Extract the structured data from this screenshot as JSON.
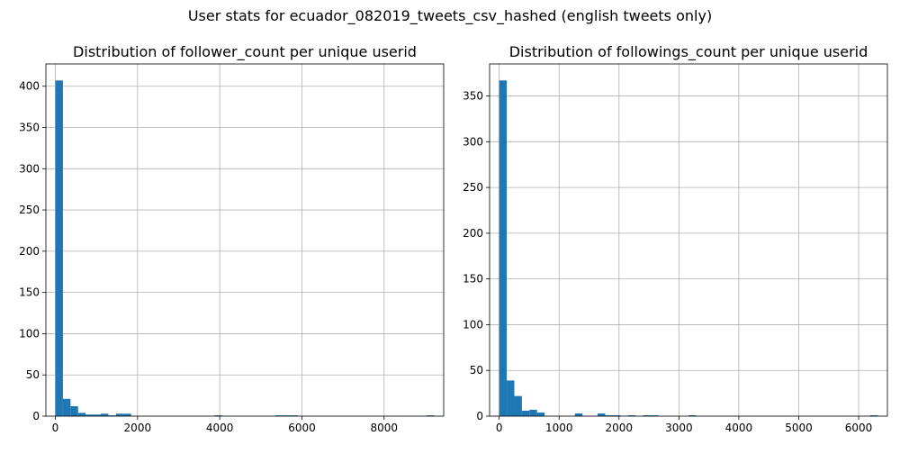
{
  "figure": {
    "suptitle": "User stats for ecuador_082019_tweets_csv_hashed (english tweets only)"
  },
  "colors": {
    "bar": "#1f77b4",
    "grid": "#b0b0b0",
    "axes": "#000000",
    "background": "#ffffff"
  },
  "chart_data": [
    {
      "type": "bar",
      "title": "Distribution of follower_count per unique userid",
      "xlabel": "",
      "ylabel": "",
      "grid": true,
      "xlim": [
        -230,
        9450
      ],
      "ylim": [
        0,
        427
      ],
      "xticks": [
        0,
        2000,
        4000,
        6000,
        8000
      ],
      "yticks": [
        0,
        50,
        100,
        150,
        200,
        250,
        300,
        350,
        400
      ],
      "bin_range": [
        0,
        9220
      ],
      "bins": 50,
      "values": [
        407,
        21,
        12,
        4,
        2,
        2,
        3,
        1,
        3,
        3,
        0,
        0,
        0,
        0,
        0,
        0,
        0,
        0,
        0,
        0,
        0,
        1,
        0,
        0,
        0,
        0,
        0,
        0,
        0,
        1,
        1,
        1,
        0,
        0,
        0,
        0,
        0,
        0,
        0,
        0,
        0,
        0,
        0,
        0,
        0,
        0,
        0,
        0,
        0,
        1
      ]
    },
    {
      "type": "bar",
      "title": "Distribution of followings_count per unique userid",
      "xlabel": "",
      "ylabel": "",
      "grid": true,
      "xlim": [
        -160,
        6480
      ],
      "ylim": [
        0,
        385
      ],
      "xticks": [
        0,
        1000,
        2000,
        3000,
        4000,
        5000,
        6000
      ],
      "yticks": [
        0,
        50,
        100,
        150,
        200,
        250,
        300,
        350
      ],
      "bin_range": [
        0,
        6320
      ],
      "bins": 50,
      "values": [
        367,
        39,
        22,
        6,
        7,
        4,
        0,
        0,
        0,
        0,
        3,
        0,
        0,
        3,
        1,
        1,
        0,
        1,
        0,
        1,
        1,
        0,
        0,
        0,
        0,
        1,
        0,
        0,
        0,
        0,
        0,
        0,
        0,
        0,
        0,
        0,
        0,
        0,
        0,
        0,
        0,
        0,
        0,
        0,
        0,
        0,
        0,
        0,
        0,
        1
      ]
    }
  ]
}
